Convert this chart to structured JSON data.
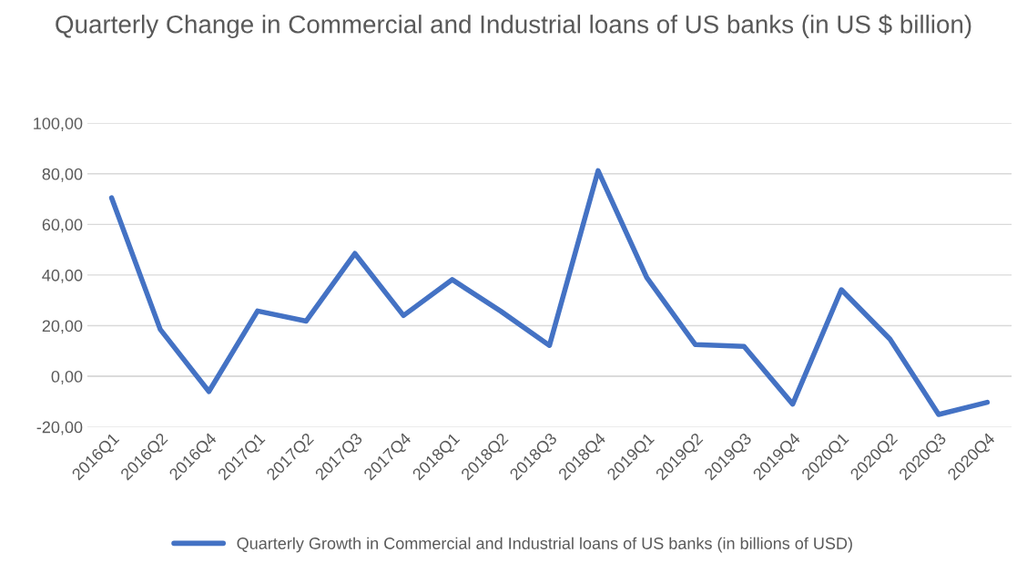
{
  "chart_data": {
    "type": "line",
    "title": "Quarterly Change in Commercial and Industrial loans of US banks (in US $ billion)",
    "categories": [
      "2016Q1",
      "2016Q2",
      "2016Q4",
      "2017Q1",
      "2017Q2",
      "2017Q3",
      "2017Q4",
      "2018Q1",
      "2018Q2",
      "2018Q3",
      "2018Q4",
      "2019Q1",
      "2019Q2",
      "2019Q3",
      "2019Q4",
      "2020Q1",
      "2020Q2",
      "2020Q3",
      "2020Q4"
    ],
    "series": [
      {
        "name": "Quarterly Growth in Commercial and Industrial loans of US banks (in billions of USD)",
        "color": "#4472c4",
        "values": [
          70.5,
          18.5,
          -6,
          25.8,
          21.8,
          48.5,
          24,
          38.2,
          25.7,
          12.2,
          81.2,
          39,
          12.5,
          11.8,
          -11,
          34.2,
          14.7,
          -15.1,
          -10.3
        ]
      }
    ],
    "ylim": [
      -20,
      100
    ],
    "yticks": [
      {
        "value": -20,
        "label": "-20,00"
      },
      {
        "value": 0,
        "label": "0,00"
      },
      {
        "value": 20,
        "label": "20,00"
      },
      {
        "value": 40,
        "label": "40,00"
      },
      {
        "value": 60,
        "label": "60,00"
      },
      {
        "value": 80,
        "label": "80,00"
      },
      {
        "value": 100,
        "label": "100,00"
      }
    ],
    "grid": "y",
    "legend": "bottom",
    "marker": "none",
    "line_style": "solid"
  }
}
